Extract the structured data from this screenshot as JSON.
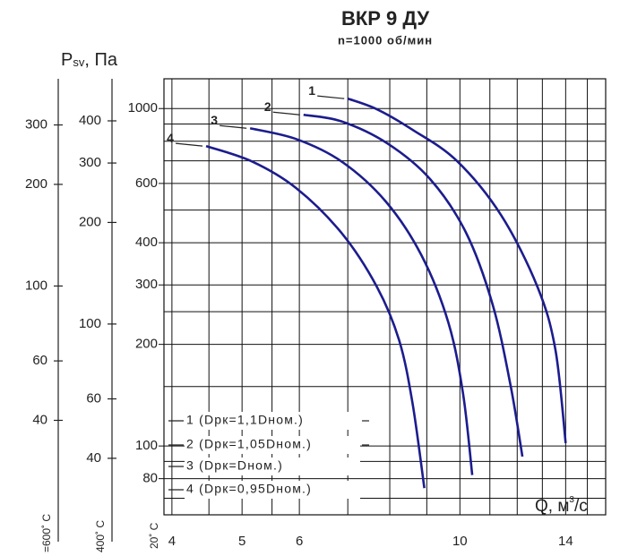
{
  "chart_data": {
    "type": "line",
    "title": "ВКР 9 ДУ",
    "subtitle": "n=1000 об/мин",
    "y_label": {
      "symbol": "P",
      "sub": "sv",
      "unit": ", Па"
    },
    "x_label": {
      "symbol": "Q, м",
      "sup": "3",
      "unit": "/с"
    },
    "log_x": true,
    "log_y": true,
    "grid": true,
    "xlim": [
      3.9,
      15.9
    ],
    "ylim": [
      62.5,
      1225
    ],
    "xticks": [
      4,
      5,
      6,
      10,
      14
    ],
    "yticks": [
      80,
      100,
      200,
      300,
      400,
      600,
      1000
    ],
    "x_minor_grid": [
      4.5,
      5.5,
      7,
      8,
      9,
      11,
      12,
      13,
      15
    ],
    "y_minor_grid": [
      70,
      90,
      150,
      250,
      500,
      700,
      800,
      900
    ],
    "y_axis_label": "20˚ C",
    "extra_y_axes": [
      {
        "label": "400˚ C",
        "ylim": [
          27.2,
          533
        ],
        "yticks": [
          40,
          60,
          100,
          200,
          300,
          400
        ]
      },
      {
        "label": "=600˚ C",
        "ylim": [
          21,
          411
        ],
        "yticks": [
          40,
          60,
          100,
          200,
          300
        ]
      }
    ],
    "series": [
      {
        "name": "1 (Dрк=1,1Dном.)",
        "label": "1",
        "color": "#1c1c8e",
        "x": [
          7.0,
          7.68,
          8.6,
          9.9,
          11.4,
          12.8,
          13.55,
          14.0
        ],
        "values": [
          1070,
          995,
          865,
          700,
          483,
          296,
          193,
          102
        ]
      },
      {
        "name": "2 (Dрк=1,05Dном.)",
        "label": "2",
        "color": "#1c1c8e",
        "x": [
          6.08,
          6.85,
          7.94,
          9.1,
          10.2,
          11.1,
          11.75,
          12.2
        ],
        "values": [
          958,
          917,
          788,
          617,
          428,
          262,
          151,
          93
        ]
      },
      {
        "name": "3 (Dрк=Dном.)",
        "label": "3",
        "color": "#1c1c8e",
        "x": [
          5.13,
          5.94,
          6.86,
          7.9,
          8.85,
          9.64,
          10.1,
          10.4
        ],
        "values": [
          874,
          812,
          697,
          530,
          367,
          232,
          143,
          82
        ]
      },
      {
        "name": "4 (Dрк=0,95Dном.)",
        "label": "4",
        "color": "#1c1c8e",
        "x": [
          4.46,
          5.16,
          5.94,
          6.86,
          7.68,
          8.24,
          8.6,
          8.93
        ],
        "values": [
          774,
          697,
          581,
          428,
          296,
          206,
          134,
          75
        ]
      }
    ]
  }
}
